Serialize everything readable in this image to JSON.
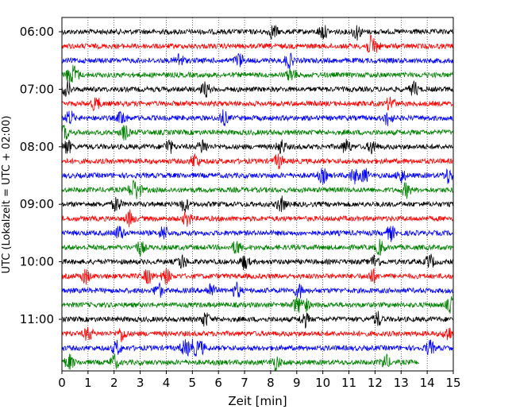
{
  "chart_data": {
    "type": "line",
    "xlabel": "Zeit  [min]",
    "ylabel": "UTC (Lokalzeit = UTC + 02:00)",
    "xlim": [
      0,
      15
    ],
    "x_ticks": [
      "0",
      "1",
      "2",
      "3",
      "4",
      "5",
      "6",
      "7",
      "8",
      "9",
      "10",
      "11",
      "12",
      "13",
      "14",
      "15"
    ],
    "y_ticks": [
      "06:00",
      "07:00",
      "08:00",
      "09:00",
      "10:00",
      "11:00"
    ],
    "grid": "vertical dotted at each minute",
    "trace_colors": [
      "#000000",
      "#ff0000",
      "#0000ff",
      "#008000"
    ],
    "traces": [
      {
        "start": "06:00",
        "duration_min": 15,
        "events_min": [
          8.1,
          10.0,
          11.3
        ]
      },
      {
        "start": "06:15",
        "duration_min": 15,
        "events_min": [
          11.8,
          12.0
        ]
      },
      {
        "start": "06:30",
        "duration_min": 15,
        "events_min": [
          4.5,
          6.8,
          8.7
        ]
      },
      {
        "start": "06:45",
        "duration_min": 15,
        "events_min": [
          0.3,
          0.5,
          8.8
        ]
      },
      {
        "start": "07:00",
        "duration_min": 15,
        "events_min": [
          0.2,
          5.5,
          13.5
        ]
      },
      {
        "start": "07:15",
        "duration_min": 15,
        "events_min": [
          1.3,
          12.6
        ]
      },
      {
        "start": "07:30",
        "duration_min": 15,
        "events_min": [
          0.3,
          2.3,
          6.2,
          12.5
        ]
      },
      {
        "start": "07:45",
        "duration_min": 15,
        "events_min": [
          0.1,
          2.4
        ]
      },
      {
        "start": "08:00",
        "duration_min": 15,
        "events_min": [
          0.2,
          4.1,
          5.4,
          8.4,
          10.9,
          11.9
        ]
      },
      {
        "start": "08:15",
        "duration_min": 15,
        "events_min": [
          5.1,
          8.3
        ]
      },
      {
        "start": "08:30",
        "duration_min": 15,
        "events_min": [
          10.0,
          11.2,
          11.6,
          13.0,
          14.8
        ]
      },
      {
        "start": "08:45",
        "duration_min": 15,
        "events_min": [
          2.7,
          2.9,
          13.2
        ]
      },
      {
        "start": "09:00",
        "duration_min": 15,
        "events_min": [
          2.1,
          4.7,
          8.4
        ]
      },
      {
        "start": "09:15",
        "duration_min": 15,
        "events_min": [
          2.6,
          4.8
        ]
      },
      {
        "start": "09:30",
        "duration_min": 15,
        "events_min": [
          2.2,
          3.9,
          12.6
        ]
      },
      {
        "start": "09:45",
        "duration_min": 15,
        "events_min": [
          3.0,
          6.7,
          12.2
        ]
      },
      {
        "start": "10:00",
        "duration_min": 15,
        "events_min": [
          4.6,
          7.0,
          12.0,
          14.1
        ]
      },
      {
        "start": "10:15",
        "duration_min": 15,
        "events_min": [
          0.9,
          3.3,
          4.0,
          11.9
        ]
      },
      {
        "start": "10:30",
        "duration_min": 15,
        "events_min": [
          3.7,
          5.7,
          6.7,
          9.1
        ]
      },
      {
        "start": "10:45",
        "duration_min": 15,
        "events_min": [
          9.0,
          9.3,
          14.9
        ]
      },
      {
        "start": "11:00",
        "duration_min": 15,
        "events_min": [
          5.5,
          9.3,
          12.1
        ]
      },
      {
        "start": "11:15",
        "duration_min": 15,
        "events_min": [
          1.0,
          2.3,
          14.8
        ]
      },
      {
        "start": "11:30",
        "duration_min": 15,
        "events_min": [
          2.1,
          4.7,
          5.0,
          5.3,
          14.1
        ]
      },
      {
        "start": "11:45",
        "duration_min": 13.7,
        "events_min": [
          0.3,
          2.0,
          8.2,
          12.4
        ]
      }
    ]
  }
}
